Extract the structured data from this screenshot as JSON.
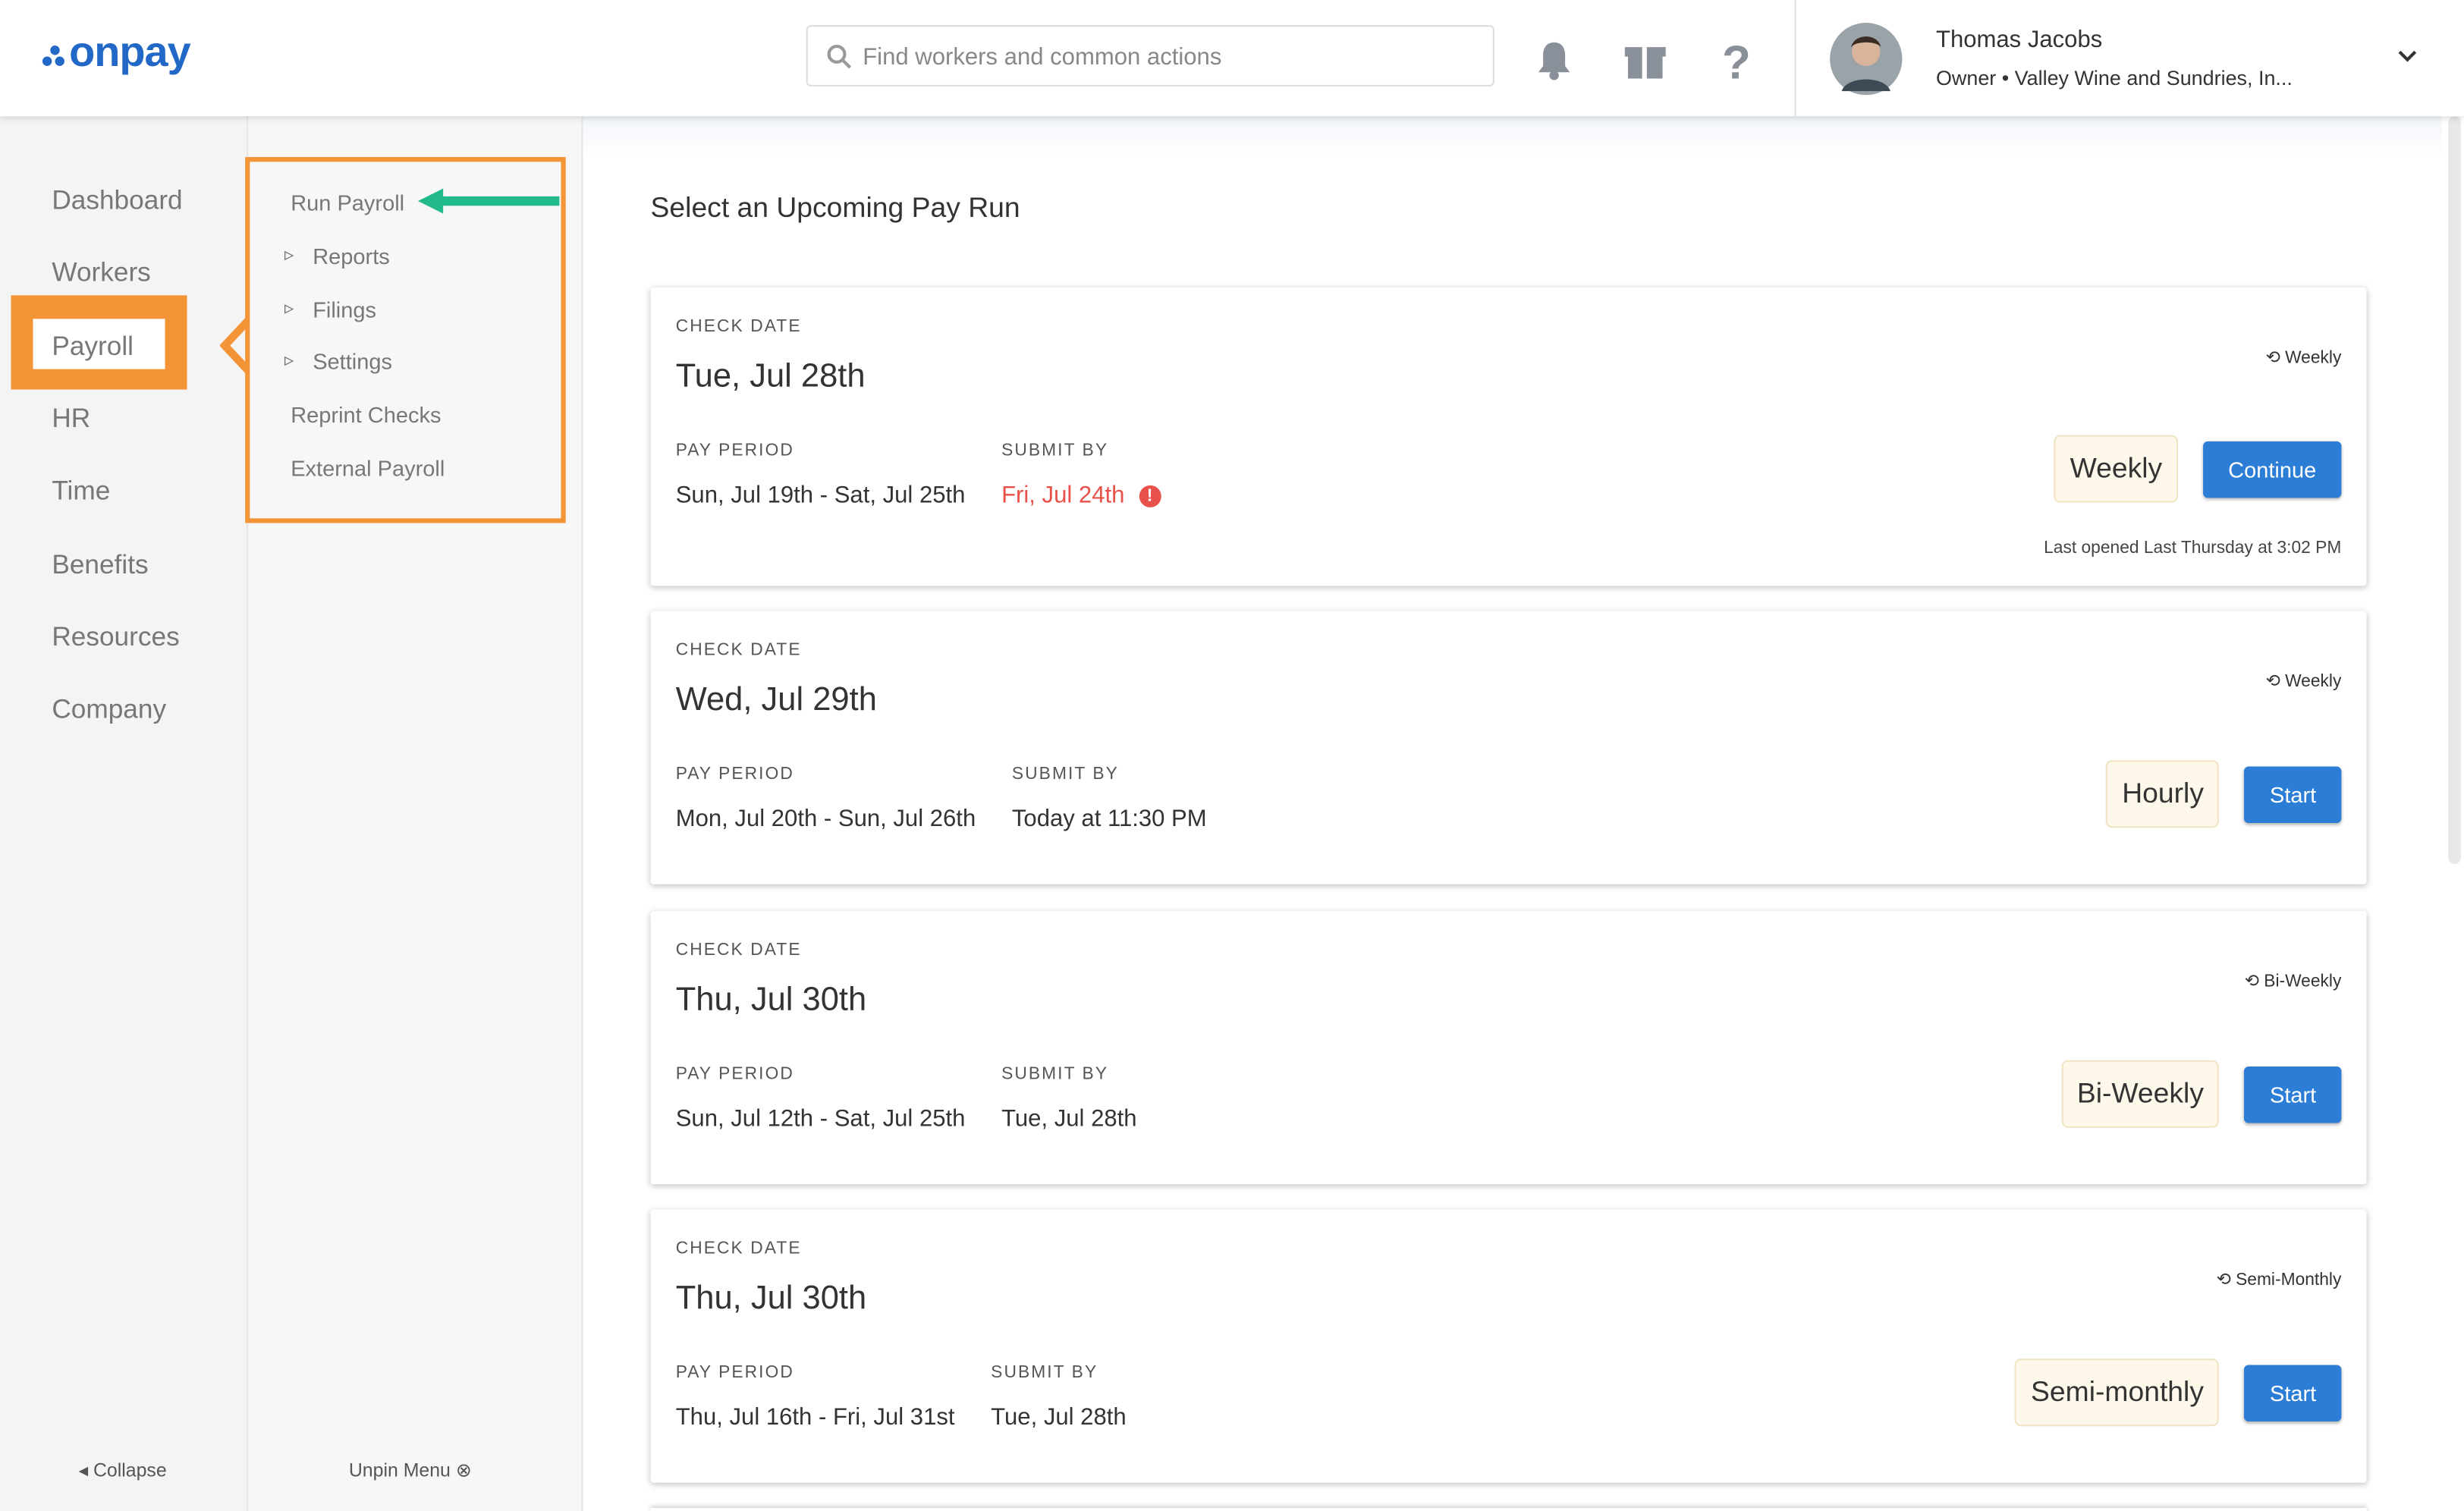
{
  "header": {
    "logo": "onpay",
    "search_placeholder": "Find workers and common actions",
    "user": {
      "name": "Thomas Jacobs",
      "role": "Owner • Valley Wine and Sundries, In..."
    }
  },
  "sidebar": {
    "items": [
      "Dashboard",
      "Workers",
      "Payroll",
      "HR",
      "Time",
      "Benefits",
      "Resources",
      "Company"
    ],
    "collapse": "Collapse"
  },
  "submenu": {
    "items": [
      {
        "label": "Run Payroll",
        "expandable": false
      },
      {
        "label": "Reports",
        "expandable": true
      },
      {
        "label": "Filings",
        "expandable": true
      },
      {
        "label": "Settings",
        "expandable": true
      },
      {
        "label": "Reprint Checks",
        "expandable": false
      },
      {
        "label": "External Payroll",
        "expandable": false
      }
    ],
    "unpin": "Unpin Menu"
  },
  "main": {
    "heading": "Select an Upcoming Pay Run",
    "cards": [
      {
        "check_date_label": "CHECK DATE",
        "check_date": "Tue, Jul 28th",
        "frequency": "Weekly",
        "pay_period_label": "PAY PERIOD",
        "pay_period": "Sun, Jul 19th - Sat, Jul 25th",
        "submit_by_label": "SUBMIT BY",
        "submit_by": "Fri, Jul 24th",
        "badge": "Weekly",
        "button": "Continue",
        "last_opened": "Last opened Last Thursday at 3:02 PM"
      },
      {
        "check_date_label": "CHECK DATE",
        "check_date": "Wed, Jul 29th",
        "frequency": "Weekly",
        "pay_period_label": "PAY PERIOD",
        "pay_period": "Mon, Jul 20th - Sun, Jul 26th",
        "submit_by_label": "SUBMIT BY",
        "submit_by": "Today at 11:30 PM",
        "badge": "Hourly",
        "button": "Start"
      },
      {
        "check_date_label": "CHECK DATE",
        "check_date": "Thu, Jul 30th",
        "frequency": "Bi-Weekly",
        "pay_period_label": "PAY PERIOD",
        "pay_period": "Sun, Jul 12th - Sat, Jul 25th",
        "submit_by_label": "SUBMIT BY",
        "submit_by": "Tue, Jul 28th",
        "badge": "Bi-Weekly",
        "button": "Start"
      },
      {
        "check_date_label": "CHECK DATE",
        "check_date": "Thu, Jul 30th",
        "frequency": "Semi-Monthly",
        "pay_period_label": "PAY PERIOD",
        "pay_period": "Thu, Jul 16th - Fri, Jul 31st",
        "submit_by_label": "SUBMIT BY",
        "submit_by": "Tue, Jul 28th",
        "badge": "Semi-monthly",
        "button": "Start"
      }
    ]
  }
}
